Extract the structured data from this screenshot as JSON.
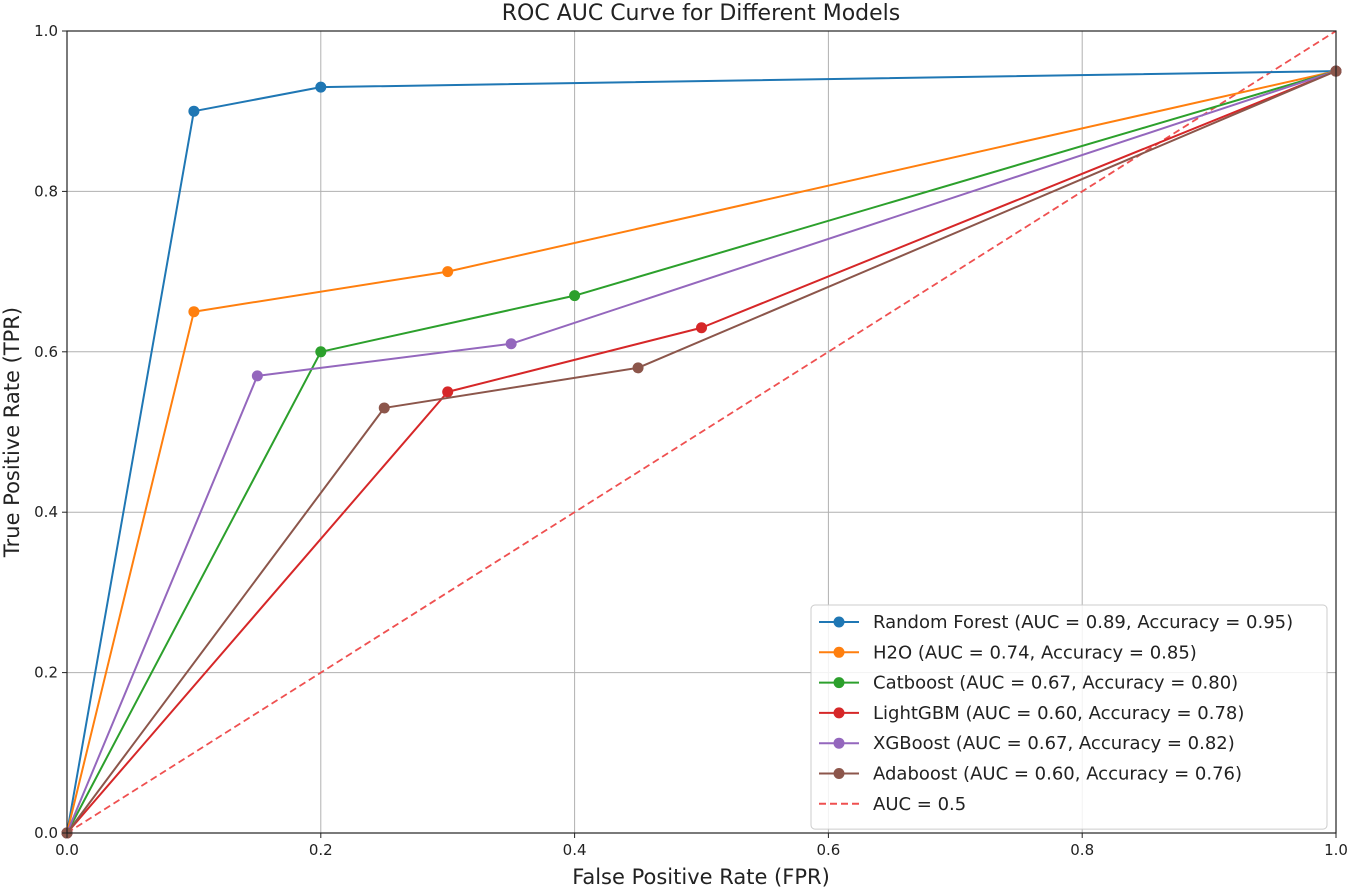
{
  "chart_data": {
    "type": "line",
    "title": "ROC AUC Curve for Different Models",
    "xlabel": "False Positive Rate (FPR)",
    "ylabel": "True Positive Rate (TPR)",
    "xlim": [
      0.0,
      1.0
    ],
    "ylim": [
      0.0,
      1.0
    ],
    "xticks": [
      "0.0",
      "0.2",
      "0.4",
      "0.6",
      "0.8",
      "1.0"
    ],
    "yticks": [
      "0.0",
      "0.2",
      "0.4",
      "0.6",
      "0.8",
      "1.0"
    ],
    "grid": true,
    "legend_position": "bottom-right",
    "series": [
      {
        "name": "Random Forest (AUC = 0.89, Accuracy = 0.95)",
        "color": "#1f77b4",
        "marker": "circle",
        "line_style": "solid",
        "x": [
          0.0,
          0.1,
          0.2,
          1.0
        ],
        "y": [
          0.0,
          0.9,
          0.93,
          0.95
        ]
      },
      {
        "name": "H2O (AUC = 0.74, Accuracy = 0.85)",
        "color": "#ff7f0e",
        "marker": "circle",
        "line_style": "solid",
        "x": [
          0.0,
          0.1,
          0.3,
          1.0
        ],
        "y": [
          0.0,
          0.65,
          0.7,
          0.95
        ]
      },
      {
        "name": "Catboost (AUC = 0.67, Accuracy = 0.80)",
        "color": "#2ca02c",
        "marker": "circle",
        "line_style": "solid",
        "x": [
          0.0,
          0.2,
          0.4,
          1.0
        ],
        "y": [
          0.0,
          0.6,
          0.67,
          0.95
        ]
      },
      {
        "name": "LightGBM (AUC = 0.60, Accuracy = 0.78)",
        "color": "#d62728",
        "marker": "circle",
        "line_style": "solid",
        "x": [
          0.0,
          0.3,
          0.5,
          1.0
        ],
        "y": [
          0.0,
          0.55,
          0.63,
          0.95
        ]
      },
      {
        "name": "XGBoost (AUC = 0.67, Accuracy = 0.82)",
        "color": "#9467bd",
        "marker": "circle",
        "line_style": "solid",
        "x": [
          0.0,
          0.15,
          0.35,
          1.0
        ],
        "y": [
          0.0,
          0.57,
          0.61,
          0.95
        ]
      },
      {
        "name": "Adaboost (AUC = 0.60, Accuracy = 0.76)",
        "color": "#8c564b",
        "marker": "circle",
        "line_style": "solid",
        "x": [
          0.0,
          0.25,
          0.45,
          1.0
        ],
        "y": [
          0.0,
          0.53,
          0.58,
          0.95
        ]
      },
      {
        "name": "AUC = 0.5",
        "color": "#ef5050",
        "marker": "none",
        "line_style": "dashed",
        "x": [
          0.0,
          1.0
        ],
        "y": [
          0.0,
          1.0
        ]
      }
    ]
  }
}
